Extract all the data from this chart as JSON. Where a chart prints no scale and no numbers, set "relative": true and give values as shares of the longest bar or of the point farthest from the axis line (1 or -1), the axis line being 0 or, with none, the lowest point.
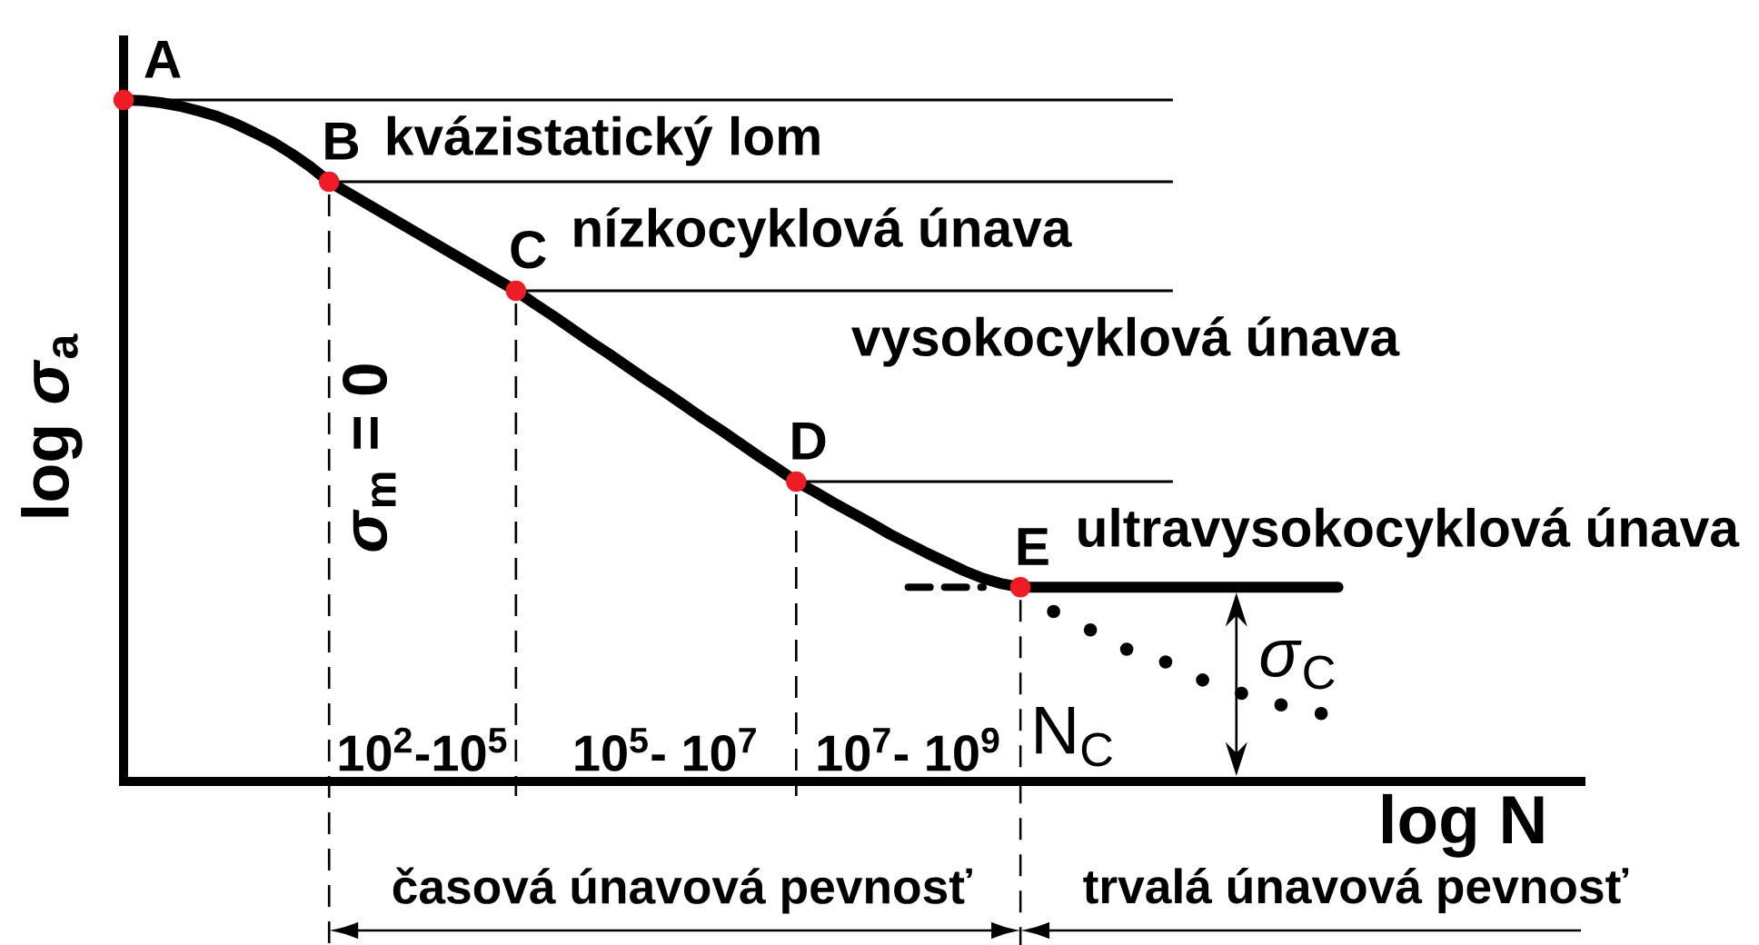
{
  "chart_data": {
    "type": "line",
    "relative": true,
    "xlabel": "log N",
    "ylabel": "log *σ*$_{a}$",
    "categories": [
      null,
      null,
      null,
      null,
      null,
      null,
      null,
      null,
      null,
      null,
      null,
      null,
      null,
      null,
      null,
      null,
      "10$^{2}$-10$^{5}$",
      null,
      null,
      null,
      null,
      null,
      null,
      null,
      null,
      null,
      null,
      null,
      null,
      "10$^{5}$- 10$^{7}$",
      null,
      null,
      null,
      null,
      null,
      null,
      null,
      null,
      null,
      null,
      null,
      null,
      "10$^{7}$- 10$^{9}$",
      null,
      null,
      null,
      null,
      null,
      null,
      null,
      null,
      null,
      null,
      null,
      null,
      null,
      null,
      null,
      null,
      null,
      null,
      null,
      null,
      null,
      null,
      null,
      null,
      null,
      null,
      null,
      null,
      null,
      null,
      null,
      null,
      null,
      null,
      null,
      null
    ],
    "series": [
      {
        "color": "#000000",
        "values": [
          1,
          0.999,
          0.996,
          0.991,
          0.984,
          0.976,
          0.965,
          0.952,
          0.938,
          0.921,
          0.902,
          0.88,
          0.864,
          0.848,
          0.832,
          0.816,
          0.8,
          0.784,
          0.768,
          0.752,
          0.736,
          0.72,
          0.701,
          0.683,
          0.664,
          0.645,
          0.627,
          0.608,
          0.589,
          0.571,
          0.552,
          0.533,
          0.515,
          0.496,
          0.477,
          0.459,
          0.44,
          0.425,
          0.409,
          0.394,
          0.379,
          0.363,
          0.349,
          0.335,
          0.322,
          0.309,
          0.298,
          0.29,
          0.285,
          0.285,
          0.285,
          0.285,
          0.285,
          0.285,
          0.285,
          0.285,
          0.285,
          0.285,
          0.285,
          0.285,
          0.285,
          0.285,
          0.285,
          0.285,
          0.285,
          0.285,
          null,
          null,
          null,
          null,
          null,
          null,
          null,
          null,
          null,
          null,
          null,
          null,
          null
        ]
      },
      {
        "type": "scatter",
        "color": "#ee1c25",
        "marker": "circle",
        "values": [
          1,
          null,
          null,
          null,
          null,
          null,
          null,
          null,
          null,
          null,
          null,
          0.88,
          null,
          null,
          null,
          null,
          null,
          null,
          null,
          null,
          null,
          0.72,
          null,
          null,
          null,
          null,
          null,
          null,
          null,
          null,
          null,
          null,
          null,
          null,
          null,
          null,
          0.44,
          null,
          null,
          null,
          null,
          null,
          null,
          null,
          null,
          null,
          null,
          null,
          0.285,
          null,
          null,
          null,
          null,
          null,
          null,
          null,
          null,
          null,
          null,
          null,
          null,
          null,
          null,
          null,
          null,
          null,
          null,
          null,
          null,
          null,
          null,
          null,
          null,
          null,
          null,
          null,
          null,
          null,
          null
        ]
      },
      {
        "color": "#000000",
        "line_style": "dotted",
        "values": [
          null,
          null,
          null,
          null,
          null,
          null,
          null,
          null,
          null,
          null,
          null,
          null,
          null,
          null,
          null,
          null,
          null,
          null,
          null,
          null,
          null,
          null,
          null,
          null,
          null,
          null,
          null,
          null,
          null,
          null,
          null,
          null,
          null,
          null,
          null,
          null,
          null,
          null,
          null,
          null,
          null,
          null,
          null,
          null,
          null,
          null,
          null,
          null,
          0.285,
          0.264,
          0.245,
          0.232,
          0.219,
          0.205,
          0.189,
          0.183,
          0.173,
          0.16,
          0.145,
          0.136,
          0.128,
          0.119,
          0.112,
          0.104,
          0.1,
          0.096,
          null,
          null,
          null,
          null,
          null,
          null,
          null,
          null,
          null,
          null,
          null,
          null,
          null
        ]
      },
      {
        "color": "#000000",
        "line_style": "dashed",
        "values": [
          null,
          null,
          null,
          null,
          null,
          null,
          null,
          null,
          null,
          null,
          null,
          null,
          null,
          null,
          null,
          null,
          null,
          null,
          null,
          null,
          null,
          null,
          null,
          null,
          null,
          null,
          null,
          null,
          null,
          null,
          null,
          null,
          null,
          null,
          null,
          null,
          null,
          null,
          null,
          null,
          null,
          null,
          0.285,
          0.285,
          0.285,
          0.285,
          0.285,
          null,
          null,
          null,
          null,
          null,
          null,
          null,
          null,
          null,
          null,
          null,
          null,
          null,
          null,
          null,
          null,
          null,
          null,
          null,
          null,
          null,
          null,
          null,
          null,
          null,
          null,
          null,
          null,
          null,
          null,
          null,
          null
        ]
      }
    ],
    "ref_lines": [
      {
        "axis": "y",
        "value": 1
      },
      {
        "axis": "y",
        "value": 0.88
      },
      {
        "axis": "y",
        "value": 0.72
      },
      {
        "axis": "y",
        "value": 0.44
      }
    ],
    "annotations": [
      {
        "text": "A",
        "y": 1
      },
      {
        "text": "B",
        "y": 0.88
      },
      {
        "text": "C",
        "y": 0.72
      },
      {
        "text": "D",
        "y": 0.44
      },
      {
        "text": "E",
        "y": 0.285
      },
      "kvázistatický lom",
      "nízkocyklová únava",
      "vysokocyklová únava",
      "ultravysokocyklová únava",
      "*σ*$_{m}$ = 0",
      "N$_{C}$",
      "*σ*$_{C}$",
      "časová únavová pevnosť",
      "trvalá únavová pevnosť"
    ]
  }
}
